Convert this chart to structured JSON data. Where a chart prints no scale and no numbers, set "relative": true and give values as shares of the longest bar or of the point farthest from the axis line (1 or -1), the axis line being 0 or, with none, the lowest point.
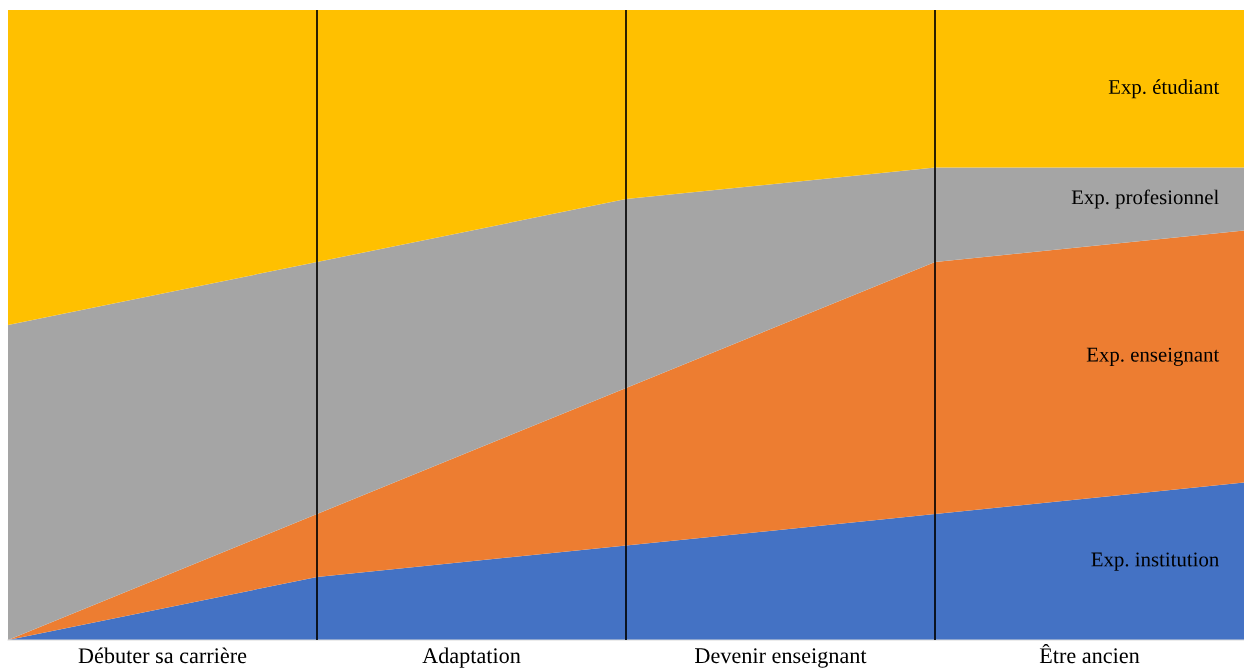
{
  "chart_data": {
    "type": "area",
    "stacked": true,
    "relative": true,
    "categories": [
      null,
      null,
      null,
      null,
      null
    ],
    "annotations": [
      "Débuter sa carrière",
      "Adaptation",
      "Devenir enseignant",
      "Être ancien"
    ],
    "series": [
      {
        "name": "Exp. institution",
        "color": "#4472c4",
        "values": [
          0,
          0.1,
          0.15,
          0.2,
          0.25
        ]
      },
      {
        "name": "Exp. enseignant",
        "color": "#ed7d31",
        "values": [
          0,
          0.1,
          0.25,
          0.4,
          0.4
        ]
      },
      {
        "name": "Exp. profesionnel",
        "color": "#a5a5a5",
        "values": [
          0.5,
          0.4,
          0.3,
          0.15,
          0.1
        ]
      },
      {
        "name": "Exp. étudiant",
        "color": "#ffc000",
        "values": [
          0.5,
          0.4,
          0.3,
          0.25,
          0.25
        ]
      }
    ],
    "grid": "x",
    "legend": false
  }
}
